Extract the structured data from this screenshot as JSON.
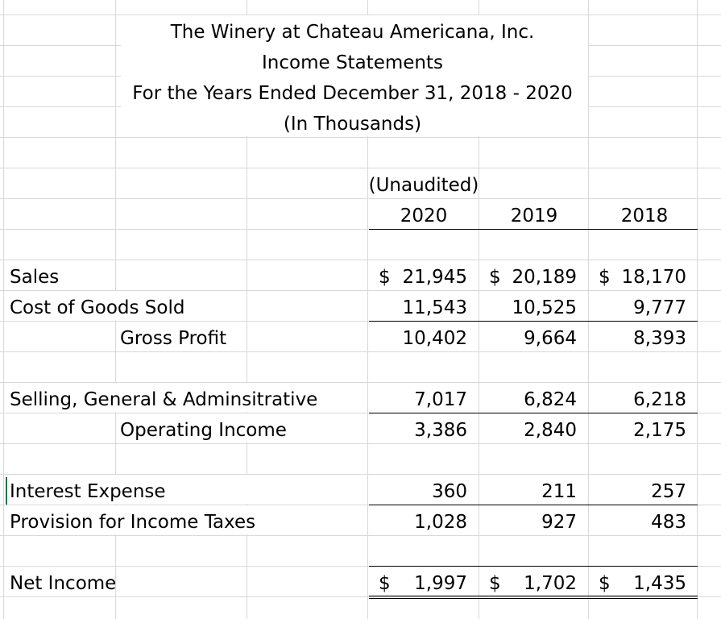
{
  "header": {
    "company": "The Winery at Chateau Americana, Inc.",
    "statement": "Income Statements",
    "period": "For the Years Ended December 31, 2018 - 2020",
    "units": "(In Thousands)"
  },
  "columns": {
    "note": "(Unaudited)",
    "years": [
      "2020",
      "2019",
      "2018"
    ]
  },
  "currency_symbol": "$",
  "rows": {
    "sales": {
      "label": "Sales",
      "values": [
        "21,945",
        "20,189",
        "18,170"
      ]
    },
    "cogs": {
      "label": "Cost of Goods Sold",
      "values": [
        "11,543",
        "10,525",
        "9,777"
      ]
    },
    "gross_profit": {
      "label": "Gross Profit",
      "values": [
        "10,402",
        "9,664",
        "8,393"
      ]
    },
    "sga": {
      "label": "Selling, General & Adminsitrative",
      "values": [
        "7,017",
        "6,824",
        "6,218"
      ]
    },
    "operating_income": {
      "label": "Operating Income",
      "values": [
        "3,386",
        "2,840",
        "2,175"
      ]
    },
    "interest": {
      "label": "Interest Expense",
      "values": [
        "360",
        "211",
        "257"
      ]
    },
    "taxes": {
      "label": "Provision for Income Taxes",
      "values": [
        "1,028",
        "927",
        "483"
      ]
    },
    "net_income": {
      "label": "Net Income",
      "values": [
        "1,997",
        "1,702",
        "1,435"
      ]
    }
  }
}
